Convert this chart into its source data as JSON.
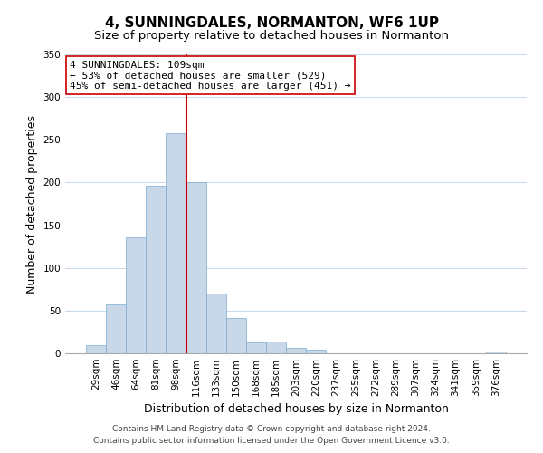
{
  "title": "4, SUNNINGDALES, NORMANTON, WF6 1UP",
  "subtitle": "Size of property relative to detached houses in Normanton",
  "xlabel": "Distribution of detached houses by size in Normanton",
  "ylabel": "Number of detached properties",
  "bin_labels": [
    "29sqm",
    "46sqm",
    "64sqm",
    "81sqm",
    "98sqm",
    "116sqm",
    "133sqm",
    "150sqm",
    "168sqm",
    "185sqm",
    "203sqm",
    "220sqm",
    "237sqm",
    "255sqm",
    "272sqm",
    "289sqm",
    "307sqm",
    "324sqm",
    "341sqm",
    "359sqm",
    "376sqm"
  ],
  "bar_heights": [
    10,
    57,
    136,
    196,
    258,
    200,
    70,
    41,
    13,
    14,
    6,
    4,
    0,
    0,
    0,
    0,
    0,
    0,
    0,
    0,
    2
  ],
  "bar_color": "#c8d8e8",
  "bar_edge_color": "#7aabcf",
  "vline_x_index": 5,
  "vline_color": "#cc0000",
  "annotation_line1": "4 SUNNINGDALES: 109sqm",
  "annotation_line2": "← 53% of detached houses are smaller (529)",
  "annotation_line3": "45% of semi-detached houses are larger (451) →",
  "annotation_box_color": "#ffffff",
  "annotation_box_edge_color": "#cc0000",
  "ylim": [
    0,
    350
  ],
  "yticks": [
    0,
    50,
    100,
    150,
    200,
    250,
    300,
    350
  ],
  "footnote1": "Contains HM Land Registry data © Crown copyright and database right 2024.",
  "footnote2": "Contains public sector information licensed under the Open Government Licence v3.0.",
  "title_fontsize": 11,
  "subtitle_fontsize": 9.5,
  "axis_label_fontsize": 9,
  "tick_fontsize": 7.5,
  "annotation_fontsize": 8,
  "footnote_fontsize": 6.5,
  "background_color": "#ffffff",
  "grid_color": "#c8d8e8"
}
